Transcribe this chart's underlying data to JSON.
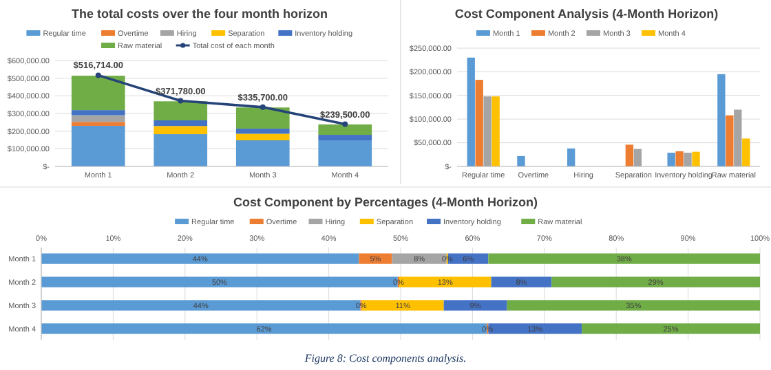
{
  "chart_data": [
    {
      "type": "bar",
      "title": "The total costs over the four month horizon",
      "stacked": true,
      "legend": "top",
      "grid": "y",
      "categories": [
        "Month 1",
        "Month 2",
        "Month 3",
        "Month 4"
      ],
      "ylim": [
        0,
        600000
      ],
      "yticks": [
        {
          "value": 0,
          "label": "$-"
        },
        {
          "value": 100000,
          "label": "$100,000.00"
        },
        {
          "value": 200000,
          "label": "$200,000.00"
        },
        {
          "value": 300000,
          "label": "$300,000.00"
        },
        {
          "value": 400000,
          "label": "$400,000.00"
        },
        {
          "value": 500000,
          "label": "$500,000.00"
        },
        {
          "value": 600000,
          "label": "$600,000.00"
        }
      ],
      "series": [
        {
          "name": "Regular time",
          "color": "#5b9bd5",
          "values": [
            230000,
            183000,
            148000,
            148000
          ]
        },
        {
          "name": "Overtime",
          "color": "#ed7d31",
          "values": [
            22000,
            0,
            0,
            0
          ]
        },
        {
          "name": "Hiring",
          "color": "#a5a5a5",
          "values": [
            38000,
            0,
            0,
            0
          ]
        },
        {
          "name": "Separation",
          "color": "#ffc000",
          "values": [
            0,
            46000,
            37000,
            0
          ]
        },
        {
          "name": "Inventory holding",
          "color": "#4472c4",
          "values": [
            29000,
            32000,
            29000,
            31000
          ]
        },
        {
          "name": "Raw material",
          "color": "#70ad47",
          "values": [
            195000,
            108000,
            120000,
            59000
          ]
        },
        {
          "name": "Total cost of each month",
          "type": "line",
          "marker": "circle",
          "color": "#264478",
          "values": [
            516714,
            371780,
            335700,
            239500
          ],
          "value_labels": [
            "$516,714.00",
            "$371,780.00",
            "$335,700.00",
            "$239,500.00"
          ]
        }
      ]
    },
    {
      "type": "bar",
      "title": "Cost Component Analysis (4-Month Horizon)",
      "legend": "top",
      "grid": "y",
      "categories": [
        "Regular time",
        "Overtime",
        "Hiring",
        "Separation",
        "Inventory holding",
        "Raw material"
      ],
      "ylim": [
        0,
        250000
      ],
      "yticks": [
        {
          "value": 0,
          "label": "$-"
        },
        {
          "value": 50000,
          "label": "$50,000.00"
        },
        {
          "value": 100000,
          "label": "$100,000.00"
        },
        {
          "value": 150000,
          "label": "$150,000.00"
        },
        {
          "value": 200000,
          "label": "$200,000.00"
        },
        {
          "value": 250000,
          "label": "$250,000.00"
        }
      ],
      "series": [
        {
          "name": "Month 1",
          "color": "#5b9bd5",
          "values": [
            230000,
            22000,
            38000,
            0,
            29000,
            195000
          ]
        },
        {
          "name": "Month 2",
          "color": "#ed7d31",
          "values": [
            183000,
            0,
            0,
            46000,
            32000,
            108000
          ]
        },
        {
          "name": "Month 3",
          "color": "#a5a5a5",
          "values": [
            148000,
            0,
            0,
            37000,
            29000,
            120000
          ]
        },
        {
          "name": "Month 4",
          "color": "#ffc000",
          "values": [
            148000,
            0,
            0,
            0,
            31000,
            59000
          ]
        }
      ]
    },
    {
      "type": "bar",
      "title": "Cost Component by Percentages (4-Month Horizon)",
      "orientation": "horizontal",
      "stacked": true,
      "legend": "top",
      "grid": "x",
      "categories": [
        "Month 1",
        "Month 2",
        "Month 3",
        "Month 4"
      ],
      "xlim": [
        0,
        100
      ],
      "xticks": [
        {
          "value": 0,
          "label": "0%"
        },
        {
          "value": 10,
          "label": "10%"
        },
        {
          "value": 20,
          "label": "20%"
        },
        {
          "value": 30,
          "label": "30%"
        },
        {
          "value": 40,
          "label": "40%"
        },
        {
          "value": 50,
          "label": "50%"
        },
        {
          "value": 60,
          "label": "60%"
        },
        {
          "value": 70,
          "label": "70%"
        },
        {
          "value": 80,
          "label": "80%"
        },
        {
          "value": 90,
          "label": "90%"
        },
        {
          "value": 100,
          "label": "100%"
        }
      ],
      "annotations": [
        "Figure 8: Cost components analysis."
      ],
      "series": [
        {
          "name": "Regular time",
          "color": "#5b9bd5",
          "values": [
            44.2,
            49.6,
            44.4,
            62
          ],
          "value_labels": [
            "44%",
            "50%",
            "44%",
            "62%"
          ]
        },
        {
          "name": "Overtime",
          "color": "#ed7d31",
          "values": [
            4.6,
            0.2,
            0.2,
            0.2
          ],
          "value_labels": [
            "5%",
            "0%",
            "0%",
            "0%"
          ]
        },
        {
          "name": "Hiring",
          "color": "#a5a5a5",
          "values": [
            7.6,
            0,
            0,
            0
          ],
          "value_labels": [
            "8%",
            null,
            null,
            null
          ]
        },
        {
          "name": "Separation",
          "color": "#ffc000",
          "values": [
            0.2,
            12.8,
            11.4,
            0
          ],
          "value_labels": [
            "0%",
            "13%",
            "11%",
            null
          ]
        },
        {
          "name": "Inventory holding",
          "color": "#4472c4",
          "values": [
            5.6,
            8.4,
            8.8,
            13
          ],
          "value_labels": [
            "6%",
            "8%",
            "9%",
            "13%"
          ]
        },
        {
          "name": "Raw material",
          "color": "#70ad47",
          "values": [
            37.8,
            29.0,
            35.2,
            24.8
          ],
          "value_labels": [
            "38%",
            "29%",
            "35%",
            "25%"
          ]
        }
      ]
    }
  ]
}
